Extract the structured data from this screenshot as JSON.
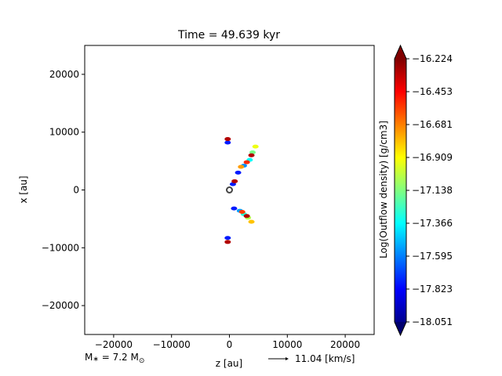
{
  "chart_data": {
    "type": "heatmap",
    "title": "Time = 49.639 kyr",
    "xlabel": "z [au]",
    "ylabel": "x [au]",
    "xlim": [
      -25000,
      25000
    ],
    "ylim": [
      -25000,
      25000
    ],
    "xticks": [
      {
        "value": -20000,
        "label": "−20000"
      },
      {
        "value": -10000,
        "label": "−10000"
      },
      {
        "value": 0,
        "label": "0"
      },
      {
        "value": 10000,
        "label": "10000"
      },
      {
        "value": 20000,
        "label": "20000"
      }
    ],
    "yticks": [
      {
        "value": 20000,
        "label": "20000"
      },
      {
        "value": 10000,
        "label": "10000"
      },
      {
        "value": 0,
        "label": "0"
      },
      {
        "value": -10000,
        "label": "−10000"
      },
      {
        "value": -20000,
        "label": "−20000"
      }
    ],
    "grid": false,
    "colormap": "jet",
    "colorbar": {
      "label": "Log(Outflow density) [g/cm3]",
      "min": -18.051,
      "max": -16.224,
      "ticks": [
        "−16.224",
        "−16.453",
        "−16.681",
        "−16.909",
        "−17.138",
        "−17.366",
        "−17.595",
        "−17.823",
        "−18.051"
      ],
      "extend": "both"
    },
    "annotations": {
      "mass": "M",
      "mass_sub": "∗",
      "mass_eq": " = 7.2 M",
      "mass_sun": "⊙",
      "arrow_label": "11.04 [km/s]"
    },
    "star_marker": {
      "z": 0,
      "x": 0
    },
    "features": [
      {
        "name": "upper-lobe",
        "points": [
          [
            1500,
            3000
          ],
          [
            2500,
            4200
          ],
          [
            3500,
            5200
          ],
          [
            4000,
            6500
          ],
          [
            4500,
            7500
          ],
          [
            2000,
            4000
          ],
          [
            3000,
            4800
          ],
          [
            3800,
            6000
          ]
        ]
      },
      {
        "name": "lower-lobe",
        "points": [
          [
            800,
            -3200
          ],
          [
            1800,
            -3600
          ],
          [
            2500,
            -4200
          ],
          [
            3200,
            -4800
          ],
          [
            3800,
            -5500
          ],
          [
            2200,
            -3800
          ],
          [
            3000,
            -4500
          ]
        ]
      },
      {
        "name": "upper-knot",
        "points": [
          [
            -300,
            8200
          ],
          [
            -300,
            8800
          ]
        ]
      },
      {
        "name": "lower-knot",
        "points": [
          [
            -300,
            -8300
          ],
          [
            -300,
            -9000
          ]
        ]
      },
      {
        "name": "inner-jet",
        "points": [
          [
            600,
            1000
          ],
          [
            900,
            1500
          ]
        ]
      }
    ]
  }
}
